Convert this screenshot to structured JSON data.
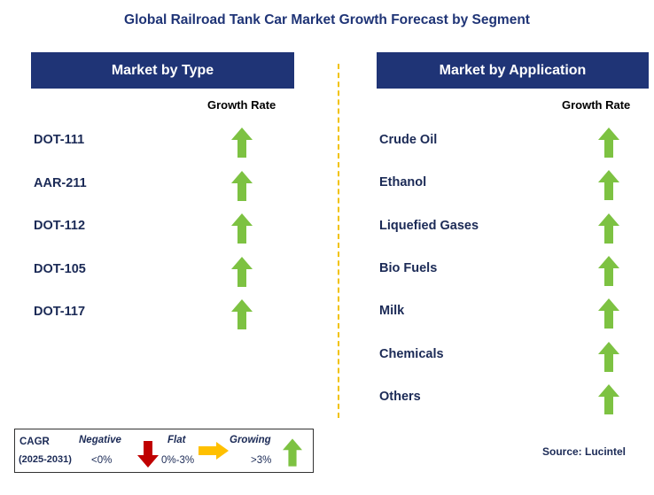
{
  "title": "Global Railroad Tank Car Market Growth Forecast by Segment",
  "left_panel": {
    "header": "Market by Type",
    "column_label": "Growth Rate",
    "rows": [
      {
        "label": "DOT-111",
        "trend": "growing"
      },
      {
        "label": "AAR-211",
        "trend": "growing"
      },
      {
        "label": "DOT-112",
        "trend": "growing"
      },
      {
        "label": "DOT-105",
        "trend": "growing"
      },
      {
        "label": "DOT-117",
        "trend": "growing"
      }
    ]
  },
  "right_panel": {
    "header": "Market by Application",
    "column_label": "Growth Rate",
    "rows": [
      {
        "label": "Crude Oil",
        "trend": "growing"
      },
      {
        "label": "Ethanol",
        "trend": "growing"
      },
      {
        "label": "Liquefied Gases",
        "trend": "growing"
      },
      {
        "label": "Bio Fuels",
        "trend": "growing"
      },
      {
        "label": "Milk",
        "trend": "growing"
      },
      {
        "label": "Chemicals",
        "trend": "growing"
      },
      {
        "label": "Others",
        "trend": "growing"
      }
    ]
  },
  "legend": {
    "cagr_label": "CAGR",
    "period": "(2025-2031)",
    "negative_label": "Negative",
    "negative_range": "<0%",
    "flat_label": "Flat",
    "flat_range": "0%-3%",
    "growing_label": "Growing",
    "growing_range": ">3%"
  },
  "source": "Source: Lucintel",
  "colors": {
    "header_bg": "#1f3476",
    "growing": "#7dc242",
    "negative": "#c00000",
    "flat": "#ffc000",
    "divider": "#f2c200"
  },
  "icons": {
    "growing": "up-arrow-icon",
    "negative": "down-arrow-icon",
    "flat": "right-arrow-icon"
  }
}
